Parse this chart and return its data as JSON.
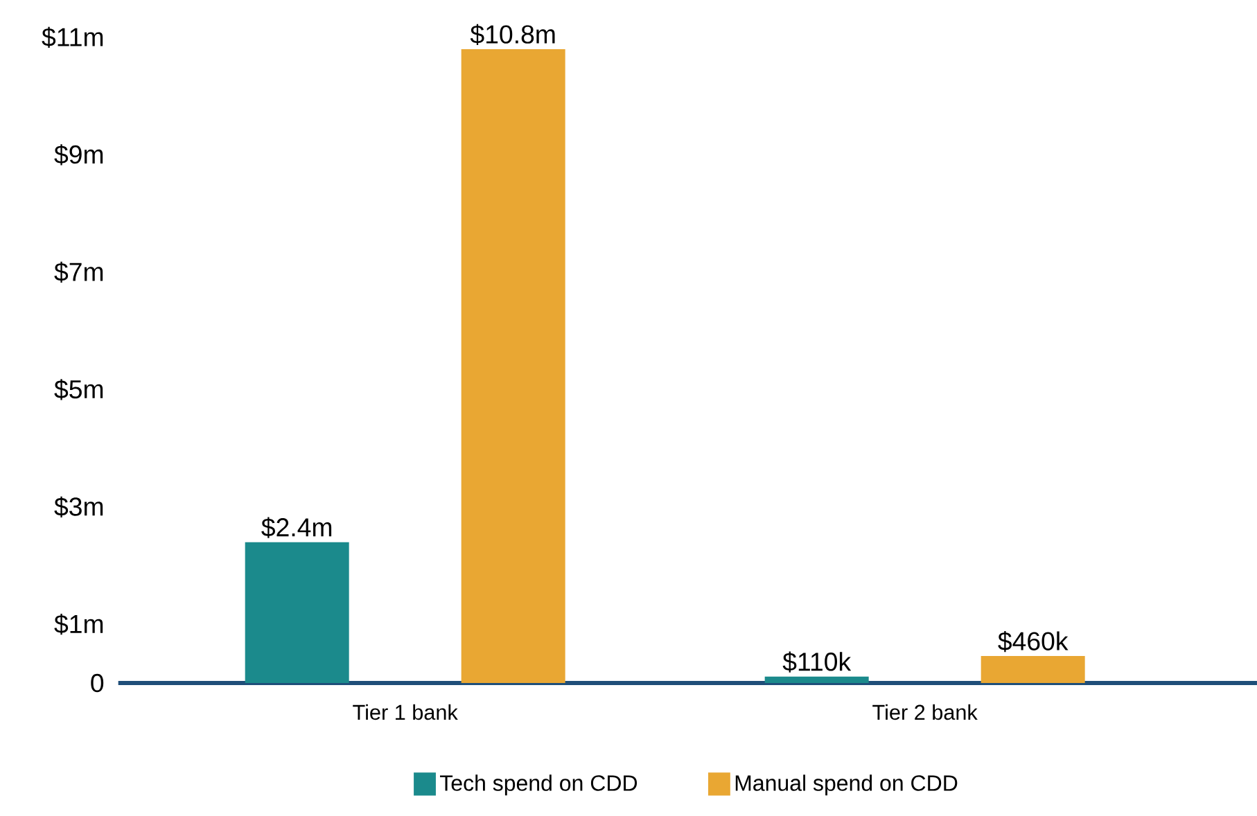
{
  "chart_data": {
    "type": "bar",
    "categories": [
      "Tier 1 bank",
      "Tier 2 bank"
    ],
    "series": [
      {
        "name": "Tech spend on CDD",
        "color": "#1b8a8c",
        "values": [
          2400000,
          110000
        ],
        "value_labels": [
          "$2.4m",
          "$110k"
        ]
      },
      {
        "name": "Manual spend on CDD",
        "color": "#e9a733",
        "values": [
          10800000,
          460000
        ],
        "value_labels": [
          "$10.8m",
          "$460k"
        ]
      }
    ],
    "ylim": [
      0,
      11000000
    ],
    "yticks": [
      0,
      {
        "value": 1000000,
        "label": "$1m"
      },
      {
        "value": 3000000,
        "label": "$3m"
      },
      {
        "value": 5000000,
        "label": "$5m"
      },
      {
        "value": 7000000,
        "label": "$7m"
      },
      {
        "value": 9000000,
        "label": "$9m"
      },
      {
        "value": 11000000,
        "label": "$11m"
      }
    ],
    "legend": "bottom",
    "grid": false
  }
}
